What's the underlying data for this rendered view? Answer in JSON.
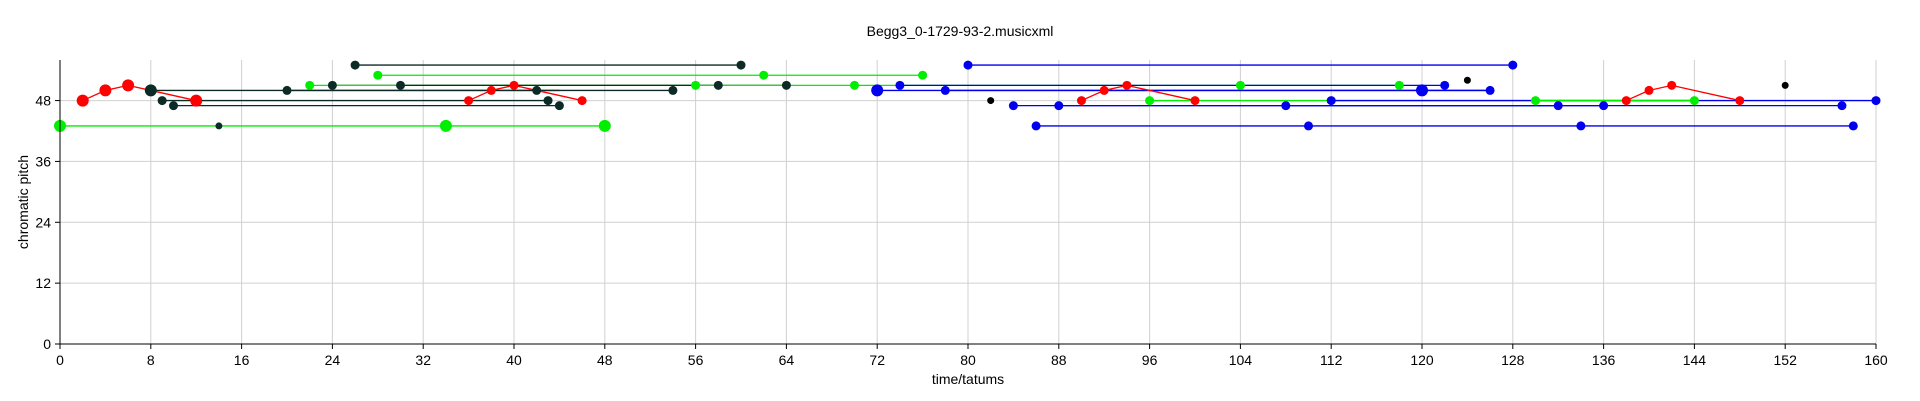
{
  "chart_data": {
    "type": "scatter",
    "title": "Begg3_0-1729-93-2.musicxml",
    "xlabel": "time/tatums",
    "ylabel": "chromatic pitch",
    "xlim": [
      0,
      160
    ],
    "ylim": [
      0,
      56
    ],
    "xticks": [
      0,
      8,
      16,
      24,
      32,
      40,
      48,
      56,
      64,
      72,
      80,
      88,
      96,
      104,
      112,
      120,
      128,
      136,
      144,
      152,
      160
    ],
    "yticks": [
      0,
      12,
      24,
      36,
      48
    ],
    "grid": true,
    "colors": {
      "red": "#ff0000",
      "green": "#00ee00",
      "dark": "#0d2b26",
      "blue": "#0000ee",
      "black": "#000000"
    },
    "segments": [
      {
        "color": "green",
        "x1": 0,
        "x2": 48,
        "y": 43
      },
      {
        "color": "dark",
        "x1": 8,
        "x2": 44,
        "y": 50
      },
      {
        "color": "dark",
        "x1": 9,
        "x2": 43,
        "y": 48
      },
      {
        "color": "dark",
        "x1": 10,
        "x2": 44,
        "y": 47
      },
      {
        "color": "dark",
        "x1": 20,
        "x2": 54,
        "y": 50
      },
      {
        "color": "dark",
        "x1": 24,
        "x2": 58,
        "y": 51
      },
      {
        "color": "dark",
        "x1": 26,
        "x2": 60,
        "y": 55
      },
      {
        "color": "green",
        "x1": 22,
        "x2": 56,
        "y": 51
      },
      {
        "color": "green",
        "x1": 28,
        "x2": 62,
        "y": 53
      },
      {
        "color": "dark",
        "x1": 30,
        "x2": 64,
        "y": 51
      },
      {
        "color": "green",
        "x1": 62,
        "x2": 76,
        "y": 53
      },
      {
        "color": "green",
        "x1": 56,
        "x2": 118,
        "y": 51
      },
      {
        "color": "blue",
        "x1": 72,
        "x2": 120,
        "y": 50
      },
      {
        "color": "blue",
        "x1": 74,
        "x2": 122,
        "y": 51
      },
      {
        "color": "blue",
        "x1": 78,
        "x2": 126,
        "y": 50
      },
      {
        "color": "blue",
        "x1": 80,
        "x2": 128,
        "y": 55
      },
      {
        "color": "blue",
        "x1": 84,
        "x2": 132,
        "y": 47
      },
      {
        "color": "blue",
        "x1": 86,
        "x2": 158,
        "y": 43
      },
      {
        "color": "blue",
        "x1": 88,
        "x2": 136,
        "y": 47
      },
      {
        "color": "green",
        "x1": 96,
        "x2": 144,
        "y": 48
      },
      {
        "color": "blue",
        "x1": 108,
        "x2": 157,
        "y": 47
      },
      {
        "color": "blue",
        "x1": 112,
        "x2": 160,
        "y": 48
      },
      {
        "color": "blue",
        "x1": 120,
        "x2": 126,
        "y": 50
      },
      {
        "color": "green",
        "x1": 130,
        "x2": 144,
        "y": 48
      }
    ],
    "polylines": [
      {
        "color": "red",
        "points": [
          [
            2,
            48
          ],
          [
            4,
            50
          ],
          [
            6,
            51
          ],
          [
            8,
            50
          ],
          [
            12,
            48
          ]
        ]
      },
      {
        "color": "red",
        "points": [
          [
            36,
            48
          ],
          [
            38,
            50
          ],
          [
            40,
            51
          ],
          [
            42,
            50
          ],
          [
            46,
            48
          ]
        ]
      },
      {
        "color": "red",
        "points": [
          [
            90,
            48
          ],
          [
            92,
            50
          ],
          [
            94,
            51
          ],
          [
            100,
            48
          ]
        ]
      },
      {
        "color": "red",
        "points": [
          [
            138,
            48
          ],
          [
            140,
            50
          ],
          [
            142,
            51
          ],
          [
            148,
            48
          ]
        ]
      }
    ],
    "points": [
      {
        "color": "green",
        "x": 0,
        "y": 43,
        "size": "l"
      },
      {
        "color": "green",
        "x": 34,
        "y": 43,
        "size": "l"
      },
      {
        "color": "green",
        "x": 48,
        "y": 43,
        "size": "l"
      },
      {
        "color": "dark",
        "x": 14,
        "y": 43,
        "size": "s"
      },
      {
        "color": "red",
        "x": 2,
        "y": 48,
        "size": "l"
      },
      {
        "color": "red",
        "x": 4,
        "y": 50,
        "size": "l"
      },
      {
        "color": "red",
        "x": 6,
        "y": 51,
        "size": "l"
      },
      {
        "color": "dark",
        "x": 8,
        "y": 50,
        "size": "l"
      },
      {
        "color": "red",
        "x": 12,
        "y": 48,
        "size": "l"
      },
      {
        "color": "dark",
        "x": 9,
        "y": 48,
        "size": "m"
      },
      {
        "color": "dark",
        "x": 10,
        "y": 47,
        "size": "m"
      },
      {
        "color": "dark",
        "x": 20,
        "y": 50,
        "size": "m"
      },
      {
        "color": "green",
        "x": 22,
        "y": 51,
        "size": "m"
      },
      {
        "color": "dark",
        "x": 24,
        "y": 51,
        "size": "m"
      },
      {
        "color": "dark",
        "x": 26,
        "y": 55,
        "size": "m"
      },
      {
        "color": "green",
        "x": 28,
        "y": 53,
        "size": "m"
      },
      {
        "color": "dark",
        "x": 30,
        "y": 51,
        "size": "m"
      },
      {
        "color": "red",
        "x": 36,
        "y": 48,
        "size": "m"
      },
      {
        "color": "red",
        "x": 38,
        "y": 50,
        "size": "m"
      },
      {
        "color": "red",
        "x": 40,
        "y": 51,
        "size": "m"
      },
      {
        "color": "dark",
        "x": 42,
        "y": 50,
        "size": "m"
      },
      {
        "color": "dark",
        "x": 43,
        "y": 48,
        "size": "m"
      },
      {
        "color": "dark",
        "x": 44,
        "y": 47,
        "size": "m"
      },
      {
        "color": "red",
        "x": 46,
        "y": 48,
        "size": "m"
      },
      {
        "color": "dark",
        "x": 54,
        "y": 50,
        "size": "m"
      },
      {
        "color": "green",
        "x": 56,
        "y": 51,
        "size": "m"
      },
      {
        "color": "dark",
        "x": 58,
        "y": 51,
        "size": "m"
      },
      {
        "color": "dark",
        "x": 60,
        "y": 55,
        "size": "m"
      },
      {
        "color": "green",
        "x": 62,
        "y": 53,
        "size": "m"
      },
      {
        "color": "dark",
        "x": 64,
        "y": 51,
        "size": "m"
      },
      {
        "color": "green",
        "x": 70,
        "y": 51,
        "size": "m"
      },
      {
        "color": "green",
        "x": 76,
        "y": 53,
        "size": "m"
      },
      {
        "color": "blue",
        "x": 72,
        "y": 50,
        "size": "l"
      },
      {
        "color": "blue",
        "x": 74,
        "y": 51,
        "size": "m"
      },
      {
        "color": "blue",
        "x": 78,
        "y": 50,
        "size": "m"
      },
      {
        "color": "blue",
        "x": 80,
        "y": 55,
        "size": "m"
      },
      {
        "color": "black",
        "x": 82,
        "y": 48,
        "size": "s"
      },
      {
        "color": "blue",
        "x": 84,
        "y": 47,
        "size": "m"
      },
      {
        "color": "blue",
        "x": 86,
        "y": 43,
        "size": "m"
      },
      {
        "color": "blue",
        "x": 88,
        "y": 47,
        "size": "m"
      },
      {
        "color": "red",
        "x": 90,
        "y": 48,
        "size": "m"
      },
      {
        "color": "red",
        "x": 92,
        "y": 50,
        "size": "m"
      },
      {
        "color": "red",
        "x": 94,
        "y": 51,
        "size": "m"
      },
      {
        "color": "green",
        "x": 96,
        "y": 48,
        "size": "m"
      },
      {
        "color": "red",
        "x": 100,
        "y": 48,
        "size": "m"
      },
      {
        "color": "green",
        "x": 104,
        "y": 51,
        "size": "m"
      },
      {
        "color": "blue",
        "x": 108,
        "y": 47,
        "size": "m"
      },
      {
        "color": "blue",
        "x": 110,
        "y": 43,
        "size": "m"
      },
      {
        "color": "blue",
        "x": 112,
        "y": 48,
        "size": "m"
      },
      {
        "color": "green",
        "x": 118,
        "y": 51,
        "size": "m"
      },
      {
        "color": "blue",
        "x": 120,
        "y": 50,
        "size": "l"
      },
      {
        "color": "blue",
        "x": 122,
        "y": 51,
        "size": "m"
      },
      {
        "color": "black",
        "x": 124,
        "y": 52,
        "size": "s"
      },
      {
        "color": "blue",
        "x": 126,
        "y": 50,
        "size": "m"
      },
      {
        "color": "blue",
        "x": 128,
        "y": 55,
        "size": "m"
      },
      {
        "color": "green",
        "x": 130,
        "y": 48,
        "size": "m"
      },
      {
        "color": "blue",
        "x": 132,
        "y": 47,
        "size": "m"
      },
      {
        "color": "blue",
        "x": 134,
        "y": 43,
        "size": "m"
      },
      {
        "color": "blue",
        "x": 136,
        "y": 47,
        "size": "m"
      },
      {
        "color": "red",
        "x": 138,
        "y": 48,
        "size": "m"
      },
      {
        "color": "red",
        "x": 140,
        "y": 50,
        "size": "m"
      },
      {
        "color": "red",
        "x": 142,
        "y": 51,
        "size": "m"
      },
      {
        "color": "green",
        "x": 144,
        "y": 48,
        "size": "m"
      },
      {
        "color": "red",
        "x": 148,
        "y": 48,
        "size": "m"
      },
      {
        "color": "black",
        "x": 152,
        "y": 51,
        "size": "s"
      },
      {
        "color": "blue",
        "x": 157,
        "y": 47,
        "size": "m"
      },
      {
        "color": "blue",
        "x": 158,
        "y": 43,
        "size": "m"
      },
      {
        "color": "blue",
        "x": 160,
        "y": 48,
        "size": "m"
      }
    ]
  }
}
